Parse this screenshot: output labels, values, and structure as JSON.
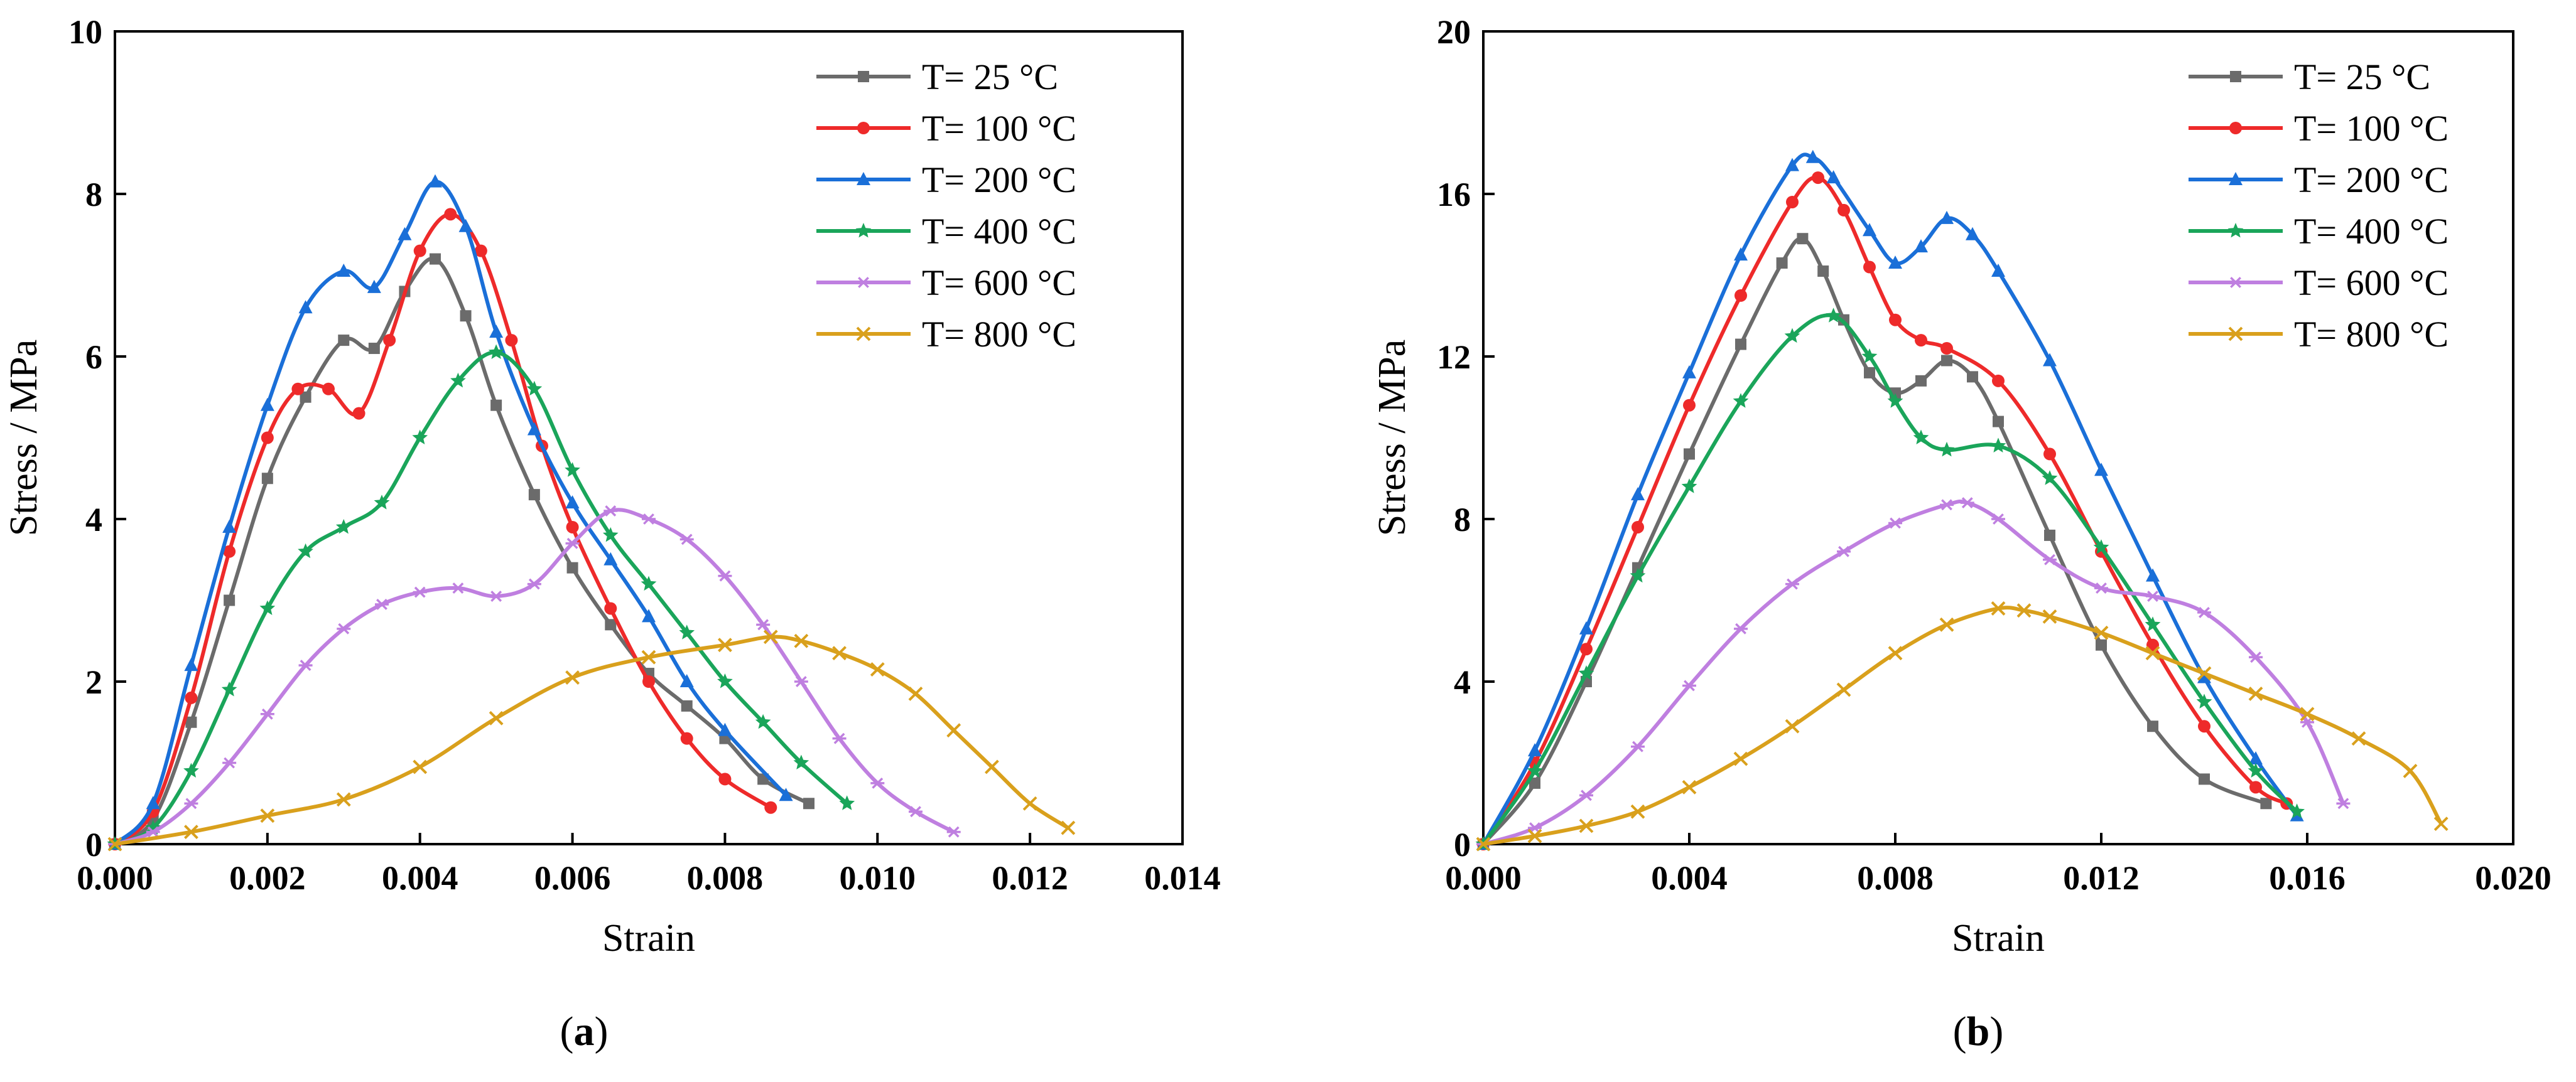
{
  "chart_data": [
    {
      "type": "line",
      "panel_label": "a",
      "xlabel": "Strain",
      "ylabel": "Stress / MPa",
      "xlim": [
        0,
        0.014
      ],
      "ylim": [
        0,
        10
      ],
      "x_ticks": [
        0,
        0.002,
        0.004,
        0.006,
        0.008,
        0.01,
        0.012,
        0.014
      ],
      "x_tick_labels": [
        "0.000",
        "0.002",
        "0.004",
        "0.006",
        "0.008",
        "0.010",
        "0.012",
        "0.014"
      ],
      "y_ticks": [
        0,
        2,
        4,
        6,
        8,
        10
      ],
      "y_tick_labels": [
        "0",
        "2",
        "4",
        "6",
        "8",
        "10"
      ],
      "legend_position": "top-right",
      "series": [
        {
          "name": "T= 25 °C",
          "color": "#6b6b6b",
          "marker": "square",
          "points": [
            [
              0,
              0
            ],
            [
              0.0005,
              0.3
            ],
            [
              0.001,
              1.5
            ],
            [
              0.0015,
              3.0
            ],
            [
              0.002,
              4.5
            ],
            [
              0.0025,
              5.5
            ],
            [
              0.003,
              6.2
            ],
            [
              0.0034,
              6.1
            ],
            [
              0.0038,
              6.8
            ],
            [
              0.0042,
              7.2
            ],
            [
              0.0046,
              6.5
            ],
            [
              0.005,
              5.4
            ],
            [
              0.0055,
              4.3
            ],
            [
              0.006,
              3.4
            ],
            [
              0.0065,
              2.7
            ],
            [
              0.007,
              2.1
            ],
            [
              0.0075,
              1.7
            ],
            [
              0.008,
              1.3
            ],
            [
              0.0085,
              0.8
            ],
            [
              0.0091,
              0.5
            ]
          ]
        },
        {
          "name": "T= 100 °C",
          "color": "#ee2a2a",
          "marker": "circle",
          "points": [
            [
              0,
              0
            ],
            [
              0.0005,
              0.4
            ],
            [
              0.001,
              1.8
            ],
            [
              0.0015,
              3.6
            ],
            [
              0.002,
              5.0
            ],
            [
              0.0024,
              5.6
            ],
            [
              0.0028,
              5.6
            ],
            [
              0.0032,
              5.3
            ],
            [
              0.0036,
              6.2
            ],
            [
              0.004,
              7.3
            ],
            [
              0.0044,
              7.75
            ],
            [
              0.0048,
              7.3
            ],
            [
              0.0052,
              6.2
            ],
            [
              0.0056,
              4.9
            ],
            [
              0.006,
              3.9
            ],
            [
              0.0065,
              2.9
            ],
            [
              0.007,
              2.0
            ],
            [
              0.0075,
              1.3
            ],
            [
              0.008,
              0.8
            ],
            [
              0.0086,
              0.45
            ]
          ]
        },
        {
          "name": "T= 200 °C",
          "color": "#1a6fd8",
          "marker": "triangle",
          "points": [
            [
              0,
              0
            ],
            [
              0.0005,
              0.5
            ],
            [
              0.001,
              2.2
            ],
            [
              0.0015,
              3.9
            ],
            [
              0.002,
              5.4
            ],
            [
              0.0025,
              6.6
            ],
            [
              0.003,
              7.05
            ],
            [
              0.0034,
              6.85
            ],
            [
              0.0038,
              7.5
            ],
            [
              0.0042,
              8.15
            ],
            [
              0.0046,
              7.6
            ],
            [
              0.005,
              6.3
            ],
            [
              0.0055,
              5.1
            ],
            [
              0.006,
              4.2
            ],
            [
              0.0065,
              3.5
            ],
            [
              0.007,
              2.8
            ],
            [
              0.0075,
              2.0
            ],
            [
              0.008,
              1.4
            ],
            [
              0.0088,
              0.6
            ]
          ]
        },
        {
          "name": "T= 400 °C",
          "color": "#1aa55a",
          "marker": "star",
          "points": [
            [
              0,
              0
            ],
            [
              0.0005,
              0.2
            ],
            [
              0.001,
              0.9
            ],
            [
              0.0015,
              1.9
            ],
            [
              0.002,
              2.9
            ],
            [
              0.0025,
              3.6
            ],
            [
              0.003,
              3.9
            ],
            [
              0.0035,
              4.2
            ],
            [
              0.004,
              5.0
            ],
            [
              0.0045,
              5.7
            ],
            [
              0.005,
              6.05
            ],
            [
              0.0055,
              5.6
            ],
            [
              0.006,
              4.6
            ],
            [
              0.0065,
              3.8
            ],
            [
              0.007,
              3.2
            ],
            [
              0.0075,
              2.6
            ],
            [
              0.008,
              2.0
            ],
            [
              0.0085,
              1.5
            ],
            [
              0.009,
              1.0
            ],
            [
              0.0096,
              0.5
            ]
          ]
        },
        {
          "name": "T= 600 °C",
          "color": "#bf7fe0",
          "marker": "asterisk",
          "points": [
            [
              0,
              0
            ],
            [
              0.0005,
              0.15
            ],
            [
              0.001,
              0.5
            ],
            [
              0.0015,
              1.0
            ],
            [
              0.002,
              1.6
            ],
            [
              0.0025,
              2.2
            ],
            [
              0.003,
              2.65
            ],
            [
              0.0035,
              2.95
            ],
            [
              0.004,
              3.1
            ],
            [
              0.0045,
              3.15
            ],
            [
              0.005,
              3.05
            ],
            [
              0.0055,
              3.2
            ],
            [
              0.006,
              3.7
            ],
            [
              0.0065,
              4.1
            ],
            [
              0.007,
              4.0
            ],
            [
              0.0075,
              3.75
            ],
            [
              0.008,
              3.3
            ],
            [
              0.0085,
              2.7
            ],
            [
              0.009,
              2.0
            ],
            [
              0.0095,
              1.3
            ],
            [
              0.01,
              0.75
            ],
            [
              0.0105,
              0.4
            ],
            [
              0.011,
              0.15
            ]
          ]
        },
        {
          "name": "T= 800 °C",
          "color": "#d9a01c",
          "marker": "x",
          "points": [
            [
              0,
              0
            ],
            [
              0.001,
              0.15
            ],
            [
              0.002,
              0.35
            ],
            [
              0.003,
              0.55
            ],
            [
              0.004,
              0.95
            ],
            [
              0.005,
              1.55
            ],
            [
              0.006,
              2.05
            ],
            [
              0.007,
              2.3
            ],
            [
              0.008,
              2.45
            ],
            [
              0.0086,
              2.55
            ],
            [
              0.009,
              2.5
            ],
            [
              0.0095,
              2.35
            ],
            [
              0.01,
              2.15
            ],
            [
              0.0105,
              1.85
            ],
            [
              0.011,
              1.4
            ],
            [
              0.0115,
              0.95
            ],
            [
              0.012,
              0.5
            ],
            [
              0.0125,
              0.2
            ]
          ]
        }
      ]
    },
    {
      "type": "line",
      "panel_label": "b",
      "xlabel": "Strain",
      "ylabel": "Stress / MPa",
      "xlim": [
        0,
        0.02
      ],
      "ylim": [
        0,
        20
      ],
      "x_ticks": [
        0,
        0.004,
        0.008,
        0.012,
        0.016,
        0.02
      ],
      "x_tick_labels": [
        "0.000",
        "0.004",
        "0.008",
        "0.012",
        "0.016",
        "0.020"
      ],
      "y_ticks": [
        0,
        4,
        8,
        12,
        16,
        20
      ],
      "y_tick_labels": [
        "0",
        "4",
        "8",
        "12",
        "16",
        "20"
      ],
      "legend_position": "top-right",
      "series": [
        {
          "name": "T= 25 °C",
          "color": "#6b6b6b",
          "marker": "square",
          "points": [
            [
              0,
              0
            ],
            [
              0.001,
              1.5
            ],
            [
              0.002,
              4.0
            ],
            [
              0.003,
              6.8
            ],
            [
              0.004,
              9.6
            ],
            [
              0.005,
              12.3
            ],
            [
              0.0058,
              14.3
            ],
            [
              0.0062,
              14.9
            ],
            [
              0.0066,
              14.1
            ],
            [
              0.007,
              12.9
            ],
            [
              0.0075,
              11.6
            ],
            [
              0.008,
              11.1
            ],
            [
              0.0085,
              11.4
            ],
            [
              0.009,
              11.9
            ],
            [
              0.0095,
              11.5
            ],
            [
              0.01,
              10.4
            ],
            [
              0.011,
              7.6
            ],
            [
              0.012,
              4.9
            ],
            [
              0.013,
              2.9
            ],
            [
              0.014,
              1.6
            ],
            [
              0.0152,
              1.0
            ]
          ]
        },
        {
          "name": "T= 100 °C",
          "color": "#ee2a2a",
          "marker": "circle",
          "points": [
            [
              0,
              0
            ],
            [
              0.001,
              2.0
            ],
            [
              0.002,
              4.8
            ],
            [
              0.003,
              7.8
            ],
            [
              0.004,
              10.8
            ],
            [
              0.005,
              13.5
            ],
            [
              0.006,
              15.8
            ],
            [
              0.0065,
              16.4
            ],
            [
              0.007,
              15.6
            ],
            [
              0.0075,
              14.2
            ],
            [
              0.008,
              12.9
            ],
            [
              0.0085,
              12.4
            ],
            [
              0.009,
              12.2
            ],
            [
              0.01,
              11.4
            ],
            [
              0.011,
              9.6
            ],
            [
              0.012,
              7.2
            ],
            [
              0.013,
              4.9
            ],
            [
              0.014,
              2.9
            ],
            [
              0.015,
              1.4
            ],
            [
              0.0156,
              1.0
            ]
          ]
        },
        {
          "name": "T= 200 °C",
          "color": "#1a6fd8",
          "marker": "triangle",
          "points": [
            [
              0,
              0
            ],
            [
              0.001,
              2.3
            ],
            [
              0.002,
              5.3
            ],
            [
              0.003,
              8.6
            ],
            [
              0.004,
              11.6
            ],
            [
              0.005,
              14.5
            ],
            [
              0.006,
              16.7
            ],
            [
              0.0064,
              16.9
            ],
            [
              0.0068,
              16.4
            ],
            [
              0.0075,
              15.1
            ],
            [
              0.008,
              14.3
            ],
            [
              0.0085,
              14.7
            ],
            [
              0.009,
              15.4
            ],
            [
              0.0095,
              15.0
            ],
            [
              0.01,
              14.1
            ],
            [
              0.011,
              11.9
            ],
            [
              0.012,
              9.2
            ],
            [
              0.013,
              6.6
            ],
            [
              0.014,
              4.1
            ],
            [
              0.015,
              2.1
            ],
            [
              0.0158,
              0.7
            ]
          ]
        },
        {
          "name": "T= 400 °C",
          "color": "#1aa55a",
          "marker": "star",
          "points": [
            [
              0,
              0
            ],
            [
              0.001,
              1.8
            ],
            [
              0.002,
              4.2
            ],
            [
              0.003,
              6.6
            ],
            [
              0.004,
              8.8
            ],
            [
              0.005,
              10.9
            ],
            [
              0.006,
              12.5
            ],
            [
              0.0068,
              13.0
            ],
            [
              0.0075,
              12.0
            ],
            [
              0.008,
              10.9
            ],
            [
              0.0085,
              10.0
            ],
            [
              0.009,
              9.7
            ],
            [
              0.01,
              9.8
            ],
            [
              0.011,
              9.0
            ],
            [
              0.012,
              7.3
            ],
            [
              0.013,
              5.4
            ],
            [
              0.014,
              3.5
            ],
            [
              0.015,
              1.8
            ],
            [
              0.0158,
              0.8
            ]
          ]
        },
        {
          "name": "T= 600 °C",
          "color": "#bf7fe0",
          "marker": "asterisk",
          "points": [
            [
              0,
              0
            ],
            [
              0.001,
              0.4
            ],
            [
              0.002,
              1.2
            ],
            [
              0.003,
              2.4
            ],
            [
              0.004,
              3.9
            ],
            [
              0.005,
              5.3
            ],
            [
              0.006,
              6.4
            ],
            [
              0.007,
              7.2
            ],
            [
              0.008,
              7.9
            ],
            [
              0.009,
              8.35
            ],
            [
              0.0094,
              8.4
            ],
            [
              0.01,
              8.0
            ],
            [
              0.011,
              7.0
            ],
            [
              0.012,
              6.3
            ],
            [
              0.013,
              6.1
            ],
            [
              0.014,
              5.7
            ],
            [
              0.015,
              4.6
            ],
            [
              0.016,
              3.0
            ],
            [
              0.0167,
              1.0
            ]
          ]
        },
        {
          "name": "T= 800 °C",
          "color": "#d9a01c",
          "marker": "x",
          "points": [
            [
              0,
              0
            ],
            [
              0.001,
              0.2
            ],
            [
              0.002,
              0.45
            ],
            [
              0.003,
              0.8
            ],
            [
              0.004,
              1.4
            ],
            [
              0.005,
              2.1
            ],
            [
              0.006,
              2.9
            ],
            [
              0.007,
              3.8
            ],
            [
              0.008,
              4.7
            ],
            [
              0.009,
              5.4
            ],
            [
              0.01,
              5.8
            ],
            [
              0.0105,
              5.75
            ],
            [
              0.011,
              5.6
            ],
            [
              0.012,
              5.2
            ],
            [
              0.013,
              4.7
            ],
            [
              0.014,
              4.2
            ],
            [
              0.015,
              3.7
            ],
            [
              0.016,
              3.2
            ],
            [
              0.017,
              2.6
            ],
            [
              0.018,
              1.8
            ],
            [
              0.0186,
              0.5
            ]
          ]
        }
      ]
    }
  ]
}
